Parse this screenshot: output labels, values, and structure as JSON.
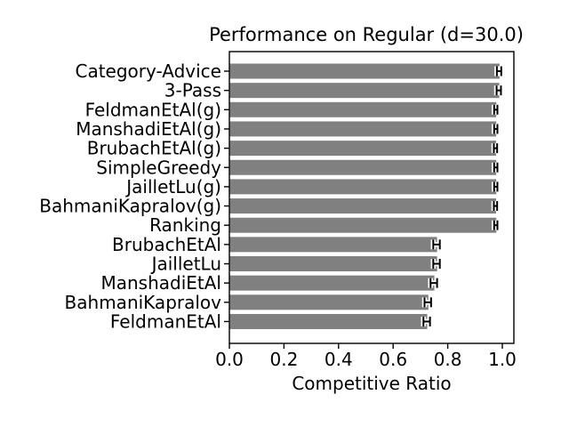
{
  "chart_data": {
    "type": "bar",
    "orientation": "horizontal",
    "title": "Performance on Regular (d=30.0)",
    "xlabel": "Competitive Ratio",
    "categories": [
      "Category-Advice",
      "3-Pass",
      "FeldmanEtAl(g)",
      "ManshadiEtAl(g)",
      "BrubachEtAl(g)",
      "SimpleGreedy",
      "JailletLu(g)",
      "BahmaniKapralov(g)",
      "Ranking",
      "BrubachEtAl",
      "JailletLu",
      "ManshadiEtAl",
      "BahmaniKapralov",
      "FeldmanEtAl"
    ],
    "values": [
      0.988,
      0.987,
      0.976,
      0.976,
      0.975,
      0.976,
      0.976,
      0.975,
      0.976,
      0.759,
      0.759,
      0.749,
      0.727,
      0.723
    ],
    "xerr": [
      0.008,
      0.008,
      0.006,
      0.006,
      0.006,
      0.006,
      0.006,
      0.006,
      0.006,
      0.012,
      0.012,
      0.012,
      0.012,
      0.012
    ],
    "xticks": [
      "0.0",
      "0.2",
      "0.4",
      "0.6",
      "0.8",
      "1.0"
    ],
    "xtick_values": [
      0.0,
      0.2,
      0.4,
      0.6,
      0.8,
      1.0
    ],
    "xlim": [
      0.0,
      1.042
    ],
    "grid": false,
    "bar_color": "#808080",
    "error_color": "#000000",
    "error_halo_color": "#ffffff",
    "axis_color": "#000000",
    "background_color": "#ffffff"
  }
}
